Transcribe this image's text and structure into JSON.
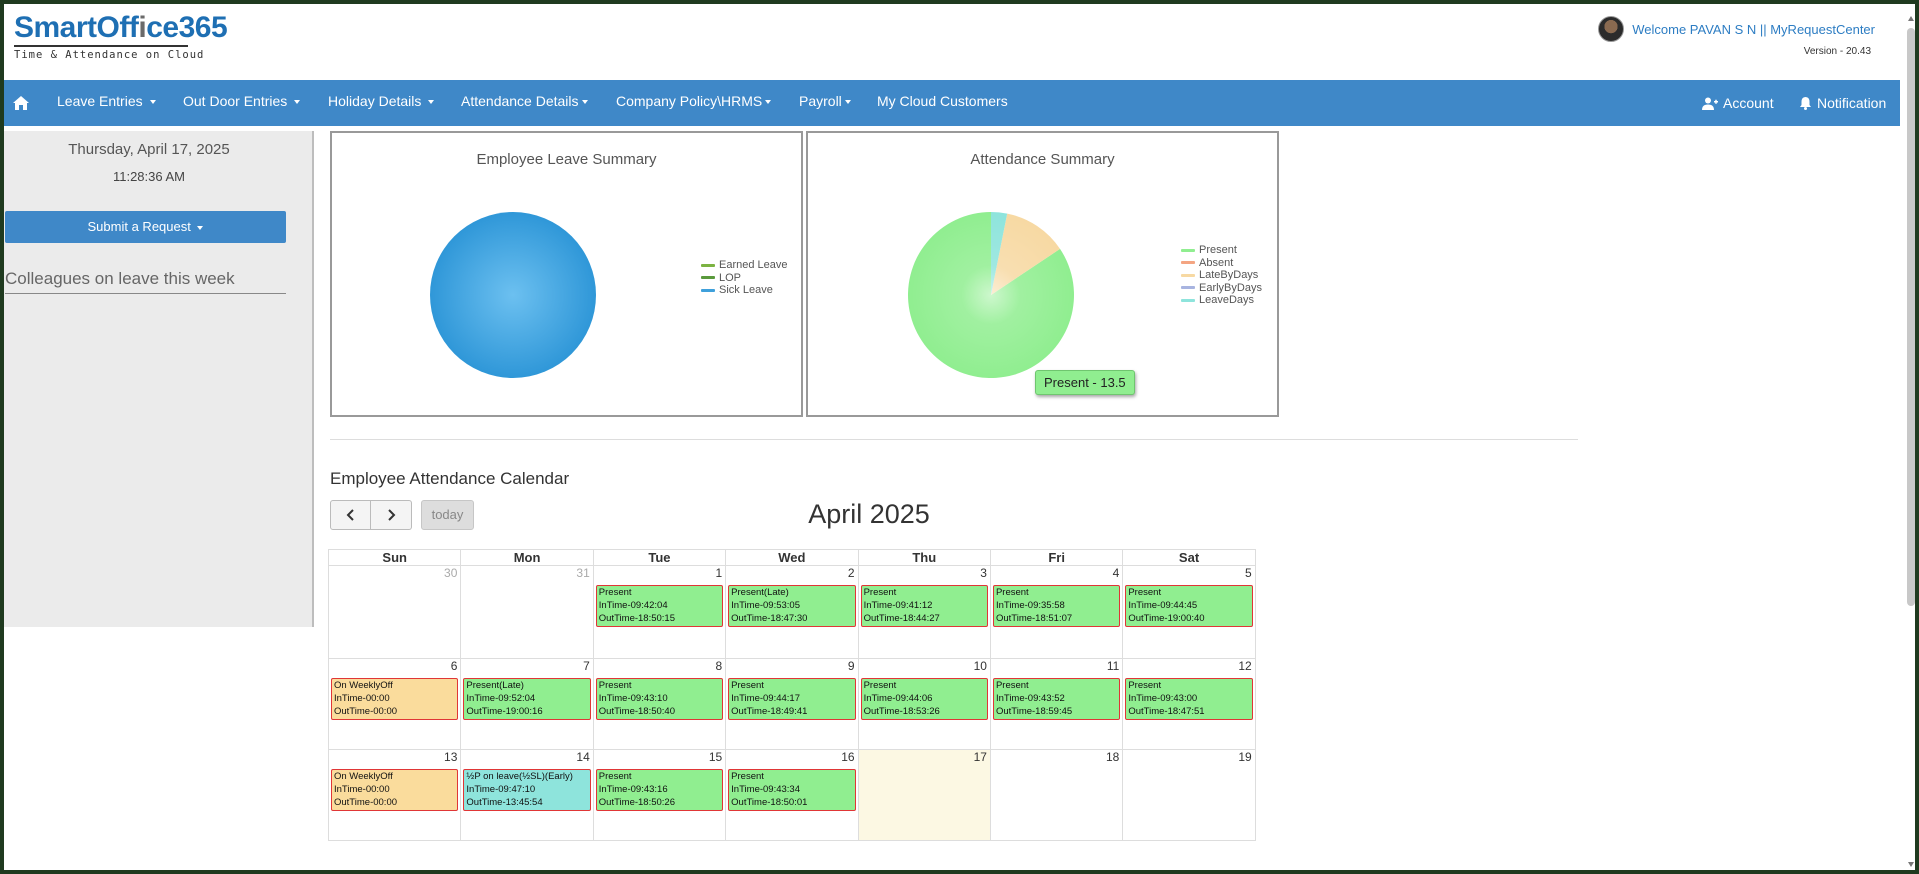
{
  "header": {
    "logo_brand_blue": "SmartOff",
    "logo_brand_gray": "i",
    "logo_brand_blue2": "ce365",
    "logo_tagline": "Time & Attendance on Cloud",
    "welcome": "Welcome PAVAN S N || MyRequestCenter",
    "version": "Version - 20.43"
  },
  "nav": {
    "items": [
      {
        "label": "Leave Entries"
      },
      {
        "label": "Out Door Entries"
      },
      {
        "label": "Holiday Details"
      },
      {
        "label": "Attendance Details"
      },
      {
        "label": "Company Policy\\HRMS"
      },
      {
        "label": "Payroll"
      },
      {
        "label": "My Cloud Customers"
      }
    ],
    "account": "Account",
    "notification": "Notification"
  },
  "sidebar": {
    "date": "Thursday, April 17, 2025",
    "time": "11:28:36 AM",
    "submit_label": "Submit a Request",
    "colleagues_heading": "Colleagues on leave this week"
  },
  "leave_chart": {
    "title": "Employee Leave Summary",
    "chart_data": {
      "type": "pie",
      "labels": [
        "Earned Leave",
        "LOP",
        "Sick Leave"
      ],
      "values": [
        0,
        0,
        1
      ],
      "colors": [
        "#7cb342",
        "#5a9a3c",
        "#3fa0db"
      ]
    }
  },
  "attendance_chart": {
    "title": "Attendance Summary",
    "chart_data": {
      "type": "pie",
      "labels": [
        "Present",
        "Absent",
        "LateByDays",
        "EarlyByDays",
        "LeaveDays"
      ],
      "values": [
        13.5,
        0,
        2,
        0,
        0.5
      ],
      "colors": [
        "#90ee90",
        "#f4a582",
        "#f7d9a3",
        "#a8b4e0",
        "#8ee4dc"
      ]
    },
    "tooltip": "Present - 13.5"
  },
  "calendar": {
    "heading": "Employee Attendance Calendar",
    "today_label": "today",
    "month_title": "April 2025",
    "day_names": [
      "Sun",
      "Mon",
      "Tue",
      "Wed",
      "Thu",
      "Fri",
      "Sat"
    ],
    "weeks": [
      [
        {
          "num": "30",
          "other": true
        },
        {
          "num": "31",
          "other": true
        },
        {
          "num": "1",
          "event": {
            "status": "Present",
            "in": "InTime-09:42:04",
            "out": "OutTime-18:50:15",
            "color": "#90ee90"
          }
        },
        {
          "num": "2",
          "event": {
            "status": "Present(Late)",
            "in": "InTime-09:53:05",
            "out": "OutTime-18:47:30",
            "color": "#90ee90"
          }
        },
        {
          "num": "3",
          "event": {
            "status": "Present",
            "in": "InTime-09:41:12",
            "out": "OutTime-18:44:27",
            "color": "#90ee90"
          }
        },
        {
          "num": "4",
          "event": {
            "status": "Present",
            "in": "InTime-09:35:58",
            "out": "OutTime-18:51:07",
            "color": "#90ee90"
          }
        },
        {
          "num": "5",
          "event": {
            "status": "Present",
            "in": "InTime-09:44:45",
            "out": "OutTime-19:00:40",
            "color": "#90ee90"
          }
        }
      ],
      [
        {
          "num": "6",
          "event": {
            "status": "On WeeklyOff",
            "in": "InTime-00:00",
            "out": "OutTime-00:00",
            "color": "#fadc9c"
          }
        },
        {
          "num": "7",
          "event": {
            "status": "Present(Late)",
            "in": "InTime-09:52:04",
            "out": "OutTime-19:00:16",
            "color": "#90ee90"
          }
        },
        {
          "num": "8",
          "event": {
            "status": "Present",
            "in": "InTime-09:43:10",
            "out": "OutTime-18:50:40",
            "color": "#90ee90"
          }
        },
        {
          "num": "9",
          "event": {
            "status": "Present",
            "in": "InTime-09:44:17",
            "out": "OutTime-18:49:41",
            "color": "#90ee90"
          }
        },
        {
          "num": "10",
          "event": {
            "status": "Present",
            "in": "InTime-09:44:06",
            "out": "OutTime-18:53:26",
            "color": "#90ee90"
          }
        },
        {
          "num": "11",
          "event": {
            "status": "Present",
            "in": "InTime-09:43:52",
            "out": "OutTime-18:59:45",
            "color": "#90ee90"
          }
        },
        {
          "num": "12",
          "event": {
            "status": "Present",
            "in": "InTime-09:43:00",
            "out": "OutTime-18:47:51",
            "color": "#90ee90"
          }
        }
      ],
      [
        {
          "num": "13",
          "event": {
            "status": "On WeeklyOff",
            "in": "InTime-00:00",
            "out": "OutTime-00:00",
            "color": "#fadc9c"
          }
        },
        {
          "num": "14",
          "event": {
            "status": "½P on leave(½SL)(Early)",
            "in": "InTime-09:47:10",
            "out": "OutTime-13:45:54",
            "color": "#8ee4dc"
          }
        },
        {
          "num": "15",
          "event": {
            "status": "Present",
            "in": "InTime-09:43:16",
            "out": "OutTime-18:50:26",
            "color": "#90ee90"
          }
        },
        {
          "num": "16",
          "event": {
            "status": "Present",
            "in": "InTime-09:43:34",
            "out": "OutTime-18:50:01",
            "color": "#90ee90"
          }
        },
        {
          "num": "17",
          "today": true
        },
        {
          "num": "18"
        },
        {
          "num": "19"
        }
      ]
    ]
  }
}
